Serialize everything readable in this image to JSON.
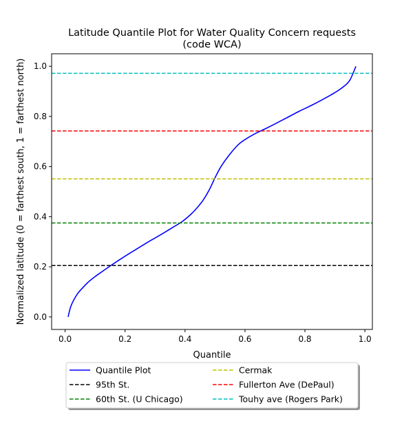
{
  "chart_data": {
    "type": "line",
    "title_line1": "Latitude Quantile Plot for Water Quality Concern  requests",
    "title_line2": "(code WCA)",
    "xlabel": "Quantile",
    "ylabel": "Normalized latitude (0 = farthest south, 1 = farthest north)",
    "xlim": [
      -0.045,
      1.025
    ],
    "ylim": [
      -0.05,
      1.05
    ],
    "x_ticks": [
      0.0,
      0.2,
      0.4,
      0.6,
      0.8,
      1.0
    ],
    "x_tick_labels": [
      "0.0",
      "0.2",
      "0.4",
      "0.6",
      "0.8",
      "1.0"
    ],
    "y_ticks": [
      0.0,
      0.2,
      0.4,
      0.6,
      0.8,
      1.0
    ],
    "y_tick_labels": [
      "0.0",
      "0.2",
      "0.4",
      "0.6",
      "0.8",
      "1.0"
    ],
    "grid": false,
    "legend_placement": "below plot, two columns",
    "series": [
      {
        "name": "Quantile Plot",
        "color": "#0000ff",
        "style": "solid",
        "x": [
          0.01,
          0.02,
          0.04,
          0.06,
          0.08,
          0.1,
          0.12,
          0.15,
          0.18,
          0.21,
          0.24,
          0.27,
          0.3,
          0.33,
          0.36,
          0.39,
          0.42,
          0.44,
          0.46,
          0.48,
          0.5,
          0.52,
          0.55,
          0.58,
          0.61,
          0.64,
          0.67,
          0.7,
          0.74,
          0.78,
          0.82,
          0.86,
          0.9,
          0.93,
          0.95,
          0.97
        ],
        "y": [
          0.0,
          0.045,
          0.09,
          0.118,
          0.142,
          0.161,
          0.178,
          0.203,
          0.227,
          0.25,
          0.272,
          0.294,
          0.315,
          0.336,
          0.358,
          0.38,
          0.41,
          0.435,
          0.465,
          0.505,
          0.555,
          0.6,
          0.65,
          0.69,
          0.715,
          0.735,
          0.752,
          0.77,
          0.795,
          0.82,
          0.843,
          0.868,
          0.895,
          0.92,
          0.945,
          1.0
        ]
      },
      {
        "name": "95th St.",
        "color": "#000000",
        "style": "dashed",
        "y_const": 0.205
      },
      {
        "name": "60th St. (U Chicago)",
        "color": "#008000",
        "style": "dashed",
        "y_const": 0.375
      },
      {
        "name": "Cermak",
        "color": "#bfbf00",
        "style": "dashed",
        "y_const": 0.551
      },
      {
        "name": "Fullerton Ave (DePaul)",
        "color": "#ff0000",
        "style": "dashed",
        "y_const": 0.742
      },
      {
        "name": "Touhy ave (Rogers Park)",
        "color": "#00bfbf",
        "style": "dashed",
        "y_const": 0.972
      }
    ]
  }
}
